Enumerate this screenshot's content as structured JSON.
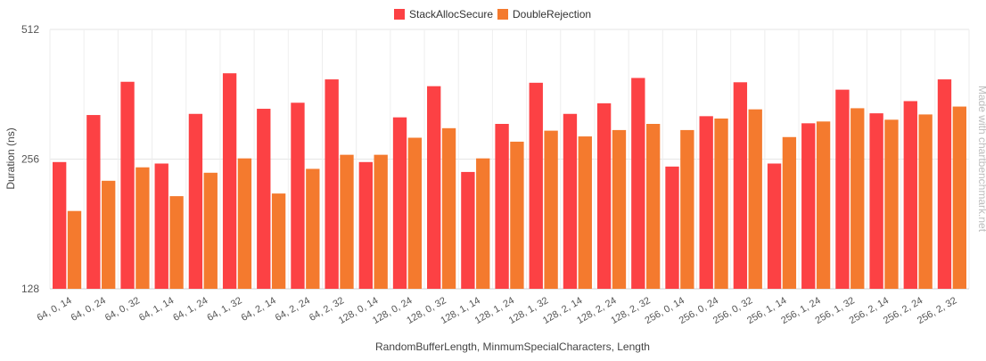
{
  "watermark": "Made with chartbenchmark.net",
  "chart_data": {
    "type": "bar",
    "title": "",
    "xlabel": "RandomBufferLength, MinmumSpecialCharacters, Length",
    "ylabel": "Duration (ns)",
    "yscale": "log2",
    "ylim": [
      128,
      512
    ],
    "yticks": [
      128,
      256,
      512
    ],
    "grid": true,
    "legend_position": "top-center",
    "categories": [
      "64, 0, 14",
      "64, 0, 24",
      "64, 0, 32",
      "64, 1, 14",
      "64, 1, 24",
      "64, 1, 32",
      "64, 2, 14",
      "64, 2, 24",
      "64, 2, 32",
      "128, 0, 14",
      "128, 0, 24",
      "128, 0, 32",
      "128, 1, 14",
      "128, 1, 24",
      "128, 1, 32",
      "128, 2, 14",
      "128, 2, 24",
      "128, 2, 32",
      "256, 0, 14",
      "256, 0, 24",
      "256, 0, 32",
      "256, 1, 14",
      "256, 1, 24",
      "256, 1, 32",
      "256, 2, 14",
      "256, 2, 24",
      "256, 2, 32"
    ],
    "series": [
      {
        "name": "StackAllocSecure",
        "color": "#fc4144",
        "values": [
          252,
          324,
          387,
          250,
          326,
          405,
          335,
          346,
          392,
          252,
          320,
          378,
          239,
          309,
          385,
          326,
          345,
          395,
          246,
          322,
          386,
          250,
          310,
          371,
          327,
          349,
          392
        ]
      },
      {
        "name": "DoubleRejection",
        "color": "#f47a2e",
        "values": [
          194,
          228,
          245,
          210,
          238,
          257,
          213,
          243,
          262,
          262,
          287,
          302,
          257,
          281,
          298,
          289,
          299,
          309,
          299,
          318,
          334,
          288,
          313,
          336,
          316,
          325,
          339
        ]
      }
    ]
  }
}
